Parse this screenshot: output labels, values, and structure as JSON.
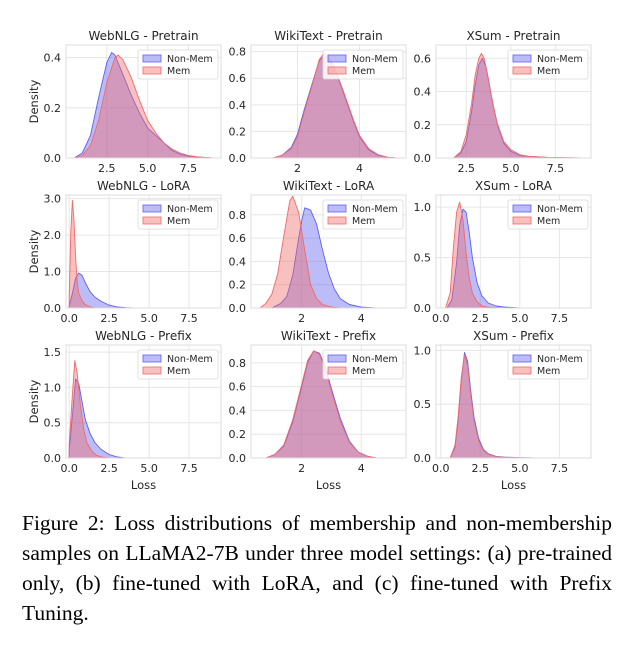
{
  "colors": {
    "non_mem": "#5f5ff0",
    "mem": "#f06a6a",
    "grid": "#e6e6e6",
    "axis": "#dcdcdc"
  },
  "caption": "Figure 2: Loss distributions of membership and non-membership samples on LLaMA2-7B under three model settings: (a) pre-trained only, (b) fine-tuned with LoRA, and (c) fine-tuned with Prefix Tuning.",
  "chart_data": [
    {
      "type": "area",
      "title": "WebNLG - Pretrain",
      "ylabel": "Density",
      "xlabel": "",
      "xlim": [
        0,
        9.5
      ],
      "ylim": [
        0,
        0.45
      ],
      "xticks": [
        2.5,
        5.0,
        7.5
      ],
      "xtick_labels": [
        "2.5",
        "5.0",
        "7.5"
      ],
      "yticks": [
        0,
        0.2,
        0.4
      ],
      "ytick_labels": [
        "0.0",
        "0.2",
        "0.4"
      ],
      "legend": "top-right",
      "grid": true,
      "series": [
        {
          "name": "Non-Mem",
          "x": [
            0.5,
            1.0,
            1.5,
            2.0,
            2.5,
            2.8,
            3.0,
            3.5,
            4.0,
            4.5,
            5.0,
            5.5,
            6.0,
            6.5,
            7.0,
            7.5,
            8.0,
            8.5,
            9.0
          ],
          "y": [
            0,
            0.02,
            0.09,
            0.24,
            0.38,
            0.42,
            0.41,
            0.33,
            0.25,
            0.18,
            0.12,
            0.09,
            0.06,
            0.03,
            0.015,
            0.008,
            0.004,
            0.002,
            0
          ]
        },
        {
          "name": "Mem",
          "x": [
            0.5,
            1.0,
            1.5,
            2.0,
            2.5,
            3.0,
            3.2,
            3.5,
            4.0,
            4.5,
            5.0,
            5.5,
            6.0,
            6.5,
            7.0,
            7.5,
            8.0,
            8.5,
            9.0
          ],
          "y": [
            0,
            0.01,
            0.05,
            0.15,
            0.3,
            0.4,
            0.41,
            0.39,
            0.32,
            0.23,
            0.15,
            0.1,
            0.06,
            0.035,
            0.02,
            0.01,
            0.005,
            0.002,
            0
          ]
        }
      ]
    },
    {
      "type": "area",
      "title": "WikiText - Pretrain",
      "ylabel": "",
      "xlabel": "",
      "xlim": [
        0.5,
        5.5
      ],
      "ylim": [
        0,
        0.85
      ],
      "xticks": [
        2,
        4
      ],
      "xtick_labels": [
        "2",
        "4"
      ],
      "yticks": [
        0,
        0.2,
        0.4,
        0.6,
        0.8
      ],
      "ytick_labels": [
        "0.0",
        "0.2",
        "0.4",
        "0.6",
        "0.8"
      ],
      "legend": "top-right",
      "grid": true,
      "series": [
        {
          "name": "Non-Mem",
          "x": [
            1.2,
            1.5,
            1.8,
            2.0,
            2.2,
            2.5,
            2.7,
            2.85,
            3.0,
            3.2,
            3.5,
            3.8,
            4.0,
            4.3,
            4.6,
            4.9,
            5.2
          ],
          "y": [
            0,
            0.02,
            0.08,
            0.18,
            0.35,
            0.58,
            0.73,
            0.77,
            0.75,
            0.67,
            0.48,
            0.28,
            0.16,
            0.06,
            0.02,
            0.005,
            0
          ]
        },
        {
          "name": "Mem",
          "x": [
            1.2,
            1.5,
            1.8,
            2.0,
            2.2,
            2.5,
            2.7,
            2.85,
            3.0,
            3.2,
            3.5,
            3.8,
            4.0,
            4.3,
            4.6,
            4.9,
            5.2
          ],
          "y": [
            0,
            0.02,
            0.07,
            0.16,
            0.33,
            0.57,
            0.74,
            0.79,
            0.77,
            0.68,
            0.49,
            0.29,
            0.17,
            0.07,
            0.025,
            0.006,
            0
          ]
        }
      ]
    },
    {
      "type": "area",
      "title": "XSum - Pretrain",
      "ylabel": "",
      "xlabel": "",
      "xlim": [
        0.8,
        9.5
      ],
      "ylim": [
        0,
        0.68
      ],
      "xticks": [
        2.5,
        5.0,
        7.5
      ],
      "xtick_labels": [
        "2.5",
        "5.0",
        "7.5"
      ],
      "yticks": [
        0,
        0.2,
        0.4,
        0.6
      ],
      "ytick_labels": [
        "0.0",
        "0.2",
        "0.4",
        "0.6"
      ],
      "legend": "top-right",
      "grid": true,
      "series": [
        {
          "name": "Non-Mem",
          "x": [
            1.8,
            2.2,
            2.5,
            2.8,
            3.0,
            3.2,
            3.4,
            3.6,
            3.8,
            4.0,
            4.3,
            4.6,
            5.0,
            5.5,
            6.0,
            7.0,
            8.0,
            9.0
          ],
          "y": [
            0,
            0.03,
            0.1,
            0.28,
            0.44,
            0.56,
            0.6,
            0.55,
            0.44,
            0.32,
            0.18,
            0.09,
            0.04,
            0.015,
            0.01,
            0.004,
            0.002,
            0
          ]
        },
        {
          "name": "Mem",
          "x": [
            1.8,
            2.2,
            2.5,
            2.8,
            3.0,
            3.2,
            3.35,
            3.5,
            3.7,
            3.9,
            4.2,
            4.6,
            5.0,
            5.5,
            6.0,
            7.0,
            8.0,
            9.0
          ],
          "y": [
            0,
            0.04,
            0.14,
            0.33,
            0.5,
            0.6,
            0.63,
            0.6,
            0.5,
            0.38,
            0.22,
            0.1,
            0.05,
            0.02,
            0.01,
            0.004,
            0.002,
            0
          ]
        }
      ]
    },
    {
      "type": "area",
      "title": "WebNLG - LoRA",
      "ylabel": "Density",
      "xlabel": "",
      "xlim": [
        -0.2,
        9.5
      ],
      "ylim": [
        0,
        3.1
      ],
      "xticks": [
        0,
        2.5,
        5.0,
        7.5
      ],
      "xtick_labels": [
        "0.0",
        "2.5",
        "5.0",
        "7.5"
      ],
      "yticks": [
        0,
        1,
        2,
        3
      ],
      "ytick_labels": [
        "0.0",
        "1.0",
        "2.0",
        "3.0"
      ],
      "legend": "top-right",
      "grid": true,
      "series": [
        {
          "name": "Non-Mem",
          "x": [
            0.0,
            0.2,
            0.4,
            0.6,
            0.8,
            1.0,
            1.3,
            1.6,
            2.0,
            2.5,
            3.0,
            3.5,
            4.0
          ],
          "y": [
            0.05,
            0.4,
            0.82,
            0.96,
            0.9,
            0.7,
            0.45,
            0.3,
            0.18,
            0.08,
            0.03,
            0.01,
            0
          ]
        },
        {
          "name": "Mem",
          "x": [
            0.0,
            0.1,
            0.2,
            0.3,
            0.4,
            0.5,
            0.6,
            0.8,
            1.0,
            1.3,
            1.6
          ],
          "y": [
            0.3,
            2.1,
            2.95,
            2.4,
            1.4,
            0.7,
            0.4,
            0.2,
            0.1,
            0.03,
            0
          ]
        }
      ]
    },
    {
      "type": "area",
      "title": "WikiText - LoRA",
      "ylabel": "",
      "xlabel": "",
      "xlim": [
        0.3,
        5.5
      ],
      "ylim": [
        0,
        0.97
      ],
      "xticks": [
        2,
        4
      ],
      "xtick_labels": [
        "2",
        "4"
      ],
      "yticks": [
        0,
        0.2,
        0.4,
        0.6,
        0.8
      ],
      "ytick_labels": [
        "0.0",
        "0.2",
        "0.4",
        "0.6",
        "0.8"
      ],
      "legend": "top-right",
      "grid": true,
      "series": [
        {
          "name": "Non-Mem",
          "x": [
            1.0,
            1.3,
            1.5,
            1.7,
            1.9,
            2.0,
            2.1,
            2.3,
            2.5,
            2.7,
            2.9,
            3.1,
            3.3,
            3.6,
            4.0,
            4.5
          ],
          "y": [
            0,
            0.04,
            0.1,
            0.28,
            0.6,
            0.75,
            0.86,
            0.84,
            0.72,
            0.5,
            0.3,
            0.16,
            0.08,
            0.03,
            0.008,
            0
          ]
        },
        {
          "name": "Mem",
          "x": [
            0.6,
            0.8,
            1.0,
            1.2,
            1.4,
            1.6,
            1.7,
            1.9,
            2.1,
            2.3,
            2.5,
            2.7,
            3.0,
            3.3
          ],
          "y": [
            0,
            0.04,
            0.12,
            0.3,
            0.62,
            0.92,
            0.96,
            0.82,
            0.5,
            0.2,
            0.08,
            0.03,
            0.008,
            0
          ]
        }
      ]
    },
    {
      "type": "area",
      "title": "XSum - LoRA",
      "ylabel": "",
      "xlabel": "",
      "xlim": [
        -0.3,
        9.5
      ],
      "ylim": [
        0,
        1.12
      ],
      "xticks": [
        0,
        2.5,
        5.0,
        7.5
      ],
      "xtick_labels": [
        "0.0",
        "2.5",
        "5.0",
        "7.5"
      ],
      "yticks": [
        0,
        0.5,
        1.0
      ],
      "ytick_labels": [
        "0.0",
        "0.5",
        "1.0"
      ],
      "legend": "top-right",
      "grid": true,
      "series": [
        {
          "name": "Non-Mem",
          "x": [
            0.4,
            0.7,
            1.0,
            1.2,
            1.4,
            1.6,
            1.8,
            2.0,
            2.3,
            2.6,
            3.0,
            3.5,
            4.0,
            5.0
          ],
          "y": [
            0,
            0.08,
            0.45,
            0.82,
            0.98,
            0.95,
            0.75,
            0.5,
            0.25,
            0.12,
            0.05,
            0.02,
            0.01,
            0
          ]
        },
        {
          "name": "Mem",
          "x": [
            0.3,
            0.6,
            0.8,
            1.0,
            1.2,
            1.4,
            1.6,
            1.8,
            2.0,
            2.3,
            2.6,
            3.0,
            4.0
          ],
          "y": [
            0,
            0.15,
            0.6,
            0.95,
            1.05,
            0.88,
            0.55,
            0.3,
            0.15,
            0.06,
            0.02,
            0.008,
            0
          ]
        }
      ]
    },
    {
      "type": "area",
      "title": "WebNLG - Prefix",
      "ylabel": "Density",
      "xlabel": "Loss",
      "xlim": [
        -0.2,
        9.5
      ],
      "ylim": [
        0,
        1.6
      ],
      "xticks": [
        0,
        2.5,
        5.0,
        7.5
      ],
      "xtick_labels": [
        "0.0",
        "2.5",
        "5.0",
        "7.5"
      ],
      "yticks": [
        0,
        0.5,
        1.0,
        1.5
      ],
      "ytick_labels": [
        "0.0",
        "0.5",
        "1.0",
        "1.5"
      ],
      "legend": "top-right",
      "grid": true,
      "series": [
        {
          "name": "Non-Mem",
          "x": [
            0.0,
            0.2,
            0.4,
            0.6,
            0.8,
            1.0,
            1.3,
            1.6,
            2.0,
            2.5,
            3.0,
            3.5
          ],
          "y": [
            0.1,
            0.6,
            1.12,
            1.05,
            0.8,
            0.55,
            0.35,
            0.22,
            0.12,
            0.05,
            0.015,
            0
          ]
        },
        {
          "name": "Mem",
          "x": [
            0.0,
            0.2,
            0.35,
            0.5,
            0.7,
            0.9,
            1.1,
            1.4,
            1.7,
            2.0,
            2.5
          ],
          "y": [
            0.2,
            0.9,
            1.38,
            1.2,
            0.75,
            0.42,
            0.22,
            0.1,
            0.04,
            0.015,
            0
          ]
        }
      ]
    },
    {
      "type": "area",
      "title": "WikiText - Prefix",
      "ylabel": "",
      "xlabel": "Loss",
      "xlim": [
        0.3,
        5.5
      ],
      "ylim": [
        0,
        0.95
      ],
      "xticks": [
        2,
        4
      ],
      "xtick_labels": [
        "2",
        "4"
      ],
      "yticks": [
        0,
        0.2,
        0.4,
        0.6,
        0.8
      ],
      "ytick_labels": [
        "0.0",
        "0.2",
        "0.4",
        "0.6",
        "0.8"
      ],
      "legend": "top-right",
      "grid": true,
      "series": [
        {
          "name": "Non-Mem",
          "x": [
            0.8,
            1.1,
            1.4,
            1.7,
            2.0,
            2.2,
            2.4,
            2.6,
            2.8,
            3.0,
            3.3,
            3.6,
            3.9,
            4.2,
            4.5
          ],
          "y": [
            0,
            0.03,
            0.1,
            0.3,
            0.6,
            0.8,
            0.9,
            0.88,
            0.76,
            0.58,
            0.33,
            0.14,
            0.05,
            0.015,
            0
          ]
        },
        {
          "name": "Mem",
          "x": [
            0.8,
            1.1,
            1.4,
            1.7,
            2.0,
            2.2,
            2.4,
            2.6,
            2.8,
            3.0,
            3.3,
            3.6,
            3.9,
            4.2,
            4.5
          ],
          "y": [
            0,
            0.03,
            0.11,
            0.32,
            0.62,
            0.82,
            0.9,
            0.87,
            0.74,
            0.56,
            0.31,
            0.13,
            0.05,
            0.015,
            0
          ]
        }
      ]
    },
    {
      "type": "area",
      "title": "XSum - Prefix",
      "ylabel": "",
      "xlabel": "Loss",
      "xlim": [
        -0.3,
        9.5
      ],
      "ylim": [
        0,
        1.05
      ],
      "xticks": [
        0,
        2.5,
        5.0,
        7.5
      ],
      "xtick_labels": [
        "0.0",
        "2.5",
        "5.0",
        "7.5"
      ],
      "yticks": [
        0,
        0.5,
        1.0
      ],
      "ytick_labels": [
        "0.0",
        "0.5",
        "1.0"
      ],
      "legend": "top-right",
      "grid": true,
      "series": [
        {
          "name": "Non-Mem",
          "x": [
            0.6,
            0.9,
            1.1,
            1.3,
            1.5,
            1.7,
            1.9,
            2.1,
            2.4,
            2.7,
            3.0,
            3.5,
            4.0,
            5.0,
            6.0
          ],
          "y": [
            0,
            0.1,
            0.35,
            0.72,
            0.98,
            0.9,
            0.62,
            0.38,
            0.18,
            0.08,
            0.04,
            0.015,
            0.008,
            0.003,
            0
          ]
        },
        {
          "name": "Mem",
          "x": [
            0.6,
            0.9,
            1.1,
            1.3,
            1.5,
            1.7,
            1.9,
            2.1,
            2.4,
            2.7,
            3.0,
            3.5,
            4.0,
            5.0,
            6.0
          ],
          "y": [
            0,
            0.12,
            0.38,
            0.75,
            0.96,
            0.86,
            0.58,
            0.35,
            0.16,
            0.07,
            0.035,
            0.012,
            0.006,
            0.002,
            0
          ]
        }
      ]
    }
  ]
}
